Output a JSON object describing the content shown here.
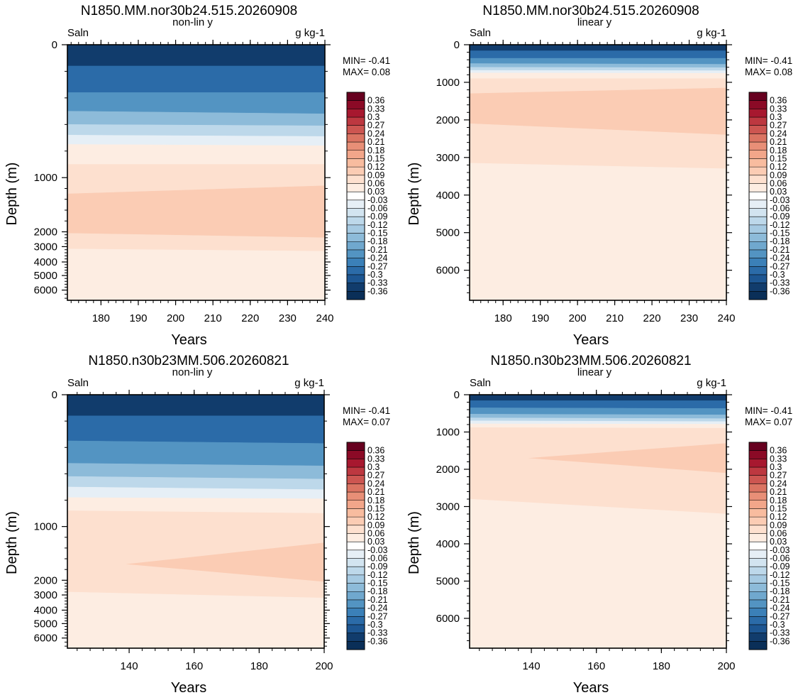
{
  "colorbar": {
    "labels": [
      "0.36",
      "0.33",
      "0.3",
      "0.27",
      "0.24",
      "0.21",
      "0.18",
      "0.15",
      "0.12",
      "0.09",
      "0.06",
      "0.03",
      "-0.03",
      "-0.06",
      "-0.09",
      "-0.12",
      "-0.15",
      "-0.18",
      "-0.21",
      "-0.24",
      "-0.27",
      "-0.3",
      "-0.33",
      "-0.36"
    ],
    "colors": [
      "#67001f",
      "#8b0a26",
      "#a7182f",
      "#bd3840",
      "#cd5651",
      "#db7462",
      "#e88f77",
      "#f2a68a",
      "#f8bc9f",
      "#fbccb4",
      "#fde0cf",
      "#fdede2",
      "#ffffff",
      "#e6eff6",
      "#d2e4f0",
      "#bdd8ea",
      "#a6cae2",
      "#8dbbd9",
      "#70a8ce",
      "#5394c2",
      "#3b80b8",
      "#2b6ba8",
      "#1d5692",
      "#113c6c",
      "#0a2f58"
    ]
  },
  "chart_data": [
    {
      "type": "heatmap",
      "title": "N1850.MM.nor30b24.515.20260908",
      "left_label": "Saln",
      "center_label": "non-lin y",
      "right_label": "g kg-1",
      "xlabel": "Years",
      "ylabel": "Depth (m)",
      "y_scale": "non-linear",
      "xlim": [
        171,
        240
      ],
      "ylim": [
        0,
        6500
      ],
      "x_ticks": [
        180,
        190,
        200,
        210,
        220,
        230,
        240
      ],
      "y_ticks": [
        0,
        1000,
        2000,
        3000,
        4000,
        5000,
        6000
      ],
      "min_text": "MIN= -0.41",
      "max_text": "MAX=  0.08",
      "layers": [
        {
          "value": -0.36,
          "top_start": 0,
          "top_end": 0,
          "bottom_start": 160,
          "bottom_end": 160
        },
        {
          "value": -0.3,
          "top_start": 160,
          "top_end": 160,
          "bottom_start": 360,
          "bottom_end": 360
        },
        {
          "value": -0.24,
          "top_start": 360,
          "top_end": 360,
          "bottom_start": 500,
          "bottom_end": 520
        },
        {
          "value": -0.18,
          "top_start": 500,
          "top_end": 520,
          "bottom_start": 600,
          "bottom_end": 610
        },
        {
          "value": -0.12,
          "top_start": 600,
          "top_end": 610,
          "bottom_start": 680,
          "bottom_end": 690
        },
        {
          "value": -0.06,
          "top_start": 680,
          "top_end": 690,
          "bottom_start": 750,
          "bottom_end": 760
        },
        {
          "value": 0.03,
          "top_start": 750,
          "top_end": 760,
          "bottom_start": 900,
          "bottom_end": 900
        },
        {
          "value": 0.06,
          "top_start": 900,
          "top_end": 900,
          "bottom_start": 1300,
          "bottom_end": 1150
        },
        {
          "value": 0.09,
          "top_start": 1300,
          "top_end": 1150,
          "bottom_start": 2100,
          "bottom_end": 2400
        },
        {
          "value": 0.06,
          "top_start": 2100,
          "top_end": 2400,
          "bottom_start": 3150,
          "bottom_end": 3300
        },
        {
          "value": 0.03,
          "top_start": 3150,
          "top_end": 3300,
          "bottom_start": 6500,
          "bottom_end": 6500
        }
      ]
    },
    {
      "type": "heatmap",
      "title": "N1850.MM.nor30b24.515.20260908",
      "left_label": "Saln",
      "center_label": "linear y",
      "right_label": "g kg-1",
      "xlabel": "Years",
      "ylabel": "Depth (m)",
      "y_scale": "linear",
      "xlim": [
        171,
        240
      ],
      "ylim": [
        0,
        6800
      ],
      "x_ticks": [
        180,
        190,
        200,
        210,
        220,
        230,
        240
      ],
      "y_ticks": [
        0,
        1000,
        2000,
        3000,
        4000,
        5000,
        6000
      ],
      "min_text": "MIN= -0.41",
      "max_text": "MAX=  0.08",
      "layers": [
        {
          "value": -0.36,
          "top_start": 0,
          "top_end": 0,
          "bottom_start": 160,
          "bottom_end": 160
        },
        {
          "value": -0.3,
          "top_start": 160,
          "top_end": 160,
          "bottom_start": 360,
          "bottom_end": 360
        },
        {
          "value": -0.24,
          "top_start": 360,
          "top_end": 360,
          "bottom_start": 500,
          "bottom_end": 520
        },
        {
          "value": -0.18,
          "top_start": 500,
          "top_end": 520,
          "bottom_start": 600,
          "bottom_end": 610
        },
        {
          "value": -0.12,
          "top_start": 600,
          "top_end": 610,
          "bottom_start": 680,
          "bottom_end": 690
        },
        {
          "value": -0.06,
          "top_start": 680,
          "top_end": 690,
          "bottom_start": 750,
          "bottom_end": 760
        },
        {
          "value": 0.03,
          "top_start": 750,
          "top_end": 760,
          "bottom_start": 900,
          "bottom_end": 900
        },
        {
          "value": 0.06,
          "top_start": 900,
          "top_end": 900,
          "bottom_start": 1300,
          "bottom_end": 1150
        },
        {
          "value": 0.09,
          "top_start": 1300,
          "top_end": 1150,
          "bottom_start": 2100,
          "bottom_end": 2400
        },
        {
          "value": 0.06,
          "top_start": 2100,
          "top_end": 2400,
          "bottom_start": 3150,
          "bottom_end": 3300
        },
        {
          "value": 0.03,
          "top_start": 3150,
          "top_end": 3300,
          "bottom_start": 6800,
          "bottom_end": 6800
        }
      ]
    },
    {
      "type": "heatmap",
      "title": "N1850.n30b23MM.506.20260821",
      "left_label": "Saln",
      "center_label": "non-lin y",
      "right_label": "g kg-1",
      "xlabel": "Years",
      "ylabel": "Depth (m)",
      "y_scale": "non-linear",
      "xlim": [
        121,
        200
      ],
      "ylim": [
        0,
        6500
      ],
      "x_ticks": [
        140,
        160,
        180,
        200
      ],
      "y_ticks": [
        0,
        1000,
        2000,
        3000,
        4000,
        5000,
        6000
      ],
      "min_text": "MIN= -0.41",
      "max_text": "MAX=  0.07",
      "layers": [
        {
          "value": -0.36,
          "top_start": 0,
          "top_end": 0,
          "bottom_start": 160,
          "bottom_end": 160
        },
        {
          "value": -0.3,
          "top_start": 160,
          "top_end": 160,
          "bottom_start": 350,
          "bottom_end": 370
        },
        {
          "value": -0.24,
          "top_start": 350,
          "top_end": 370,
          "bottom_start": 520,
          "bottom_end": 540
        },
        {
          "value": -0.18,
          "top_start": 520,
          "top_end": 540,
          "bottom_start": 620,
          "bottom_end": 640
        },
        {
          "value": -0.12,
          "top_start": 620,
          "top_end": 640,
          "bottom_start": 700,
          "bottom_end": 720
        },
        {
          "value": -0.06,
          "top_start": 700,
          "top_end": 720,
          "bottom_start": 780,
          "bottom_end": 790
        },
        {
          "value": 0.03,
          "top_start": 780,
          "top_end": 790,
          "bottom_start": 880,
          "bottom_end": 900
        },
        {
          "value": 0.06,
          "top_start": 880,
          "top_end": 900,
          "bottom_start": 2800,
          "bottom_end": 3200
        },
        {
          "value": 0.03,
          "top_start": 2800,
          "top_end": 3200,
          "bottom_start": 6500,
          "bottom_end": 6500
        }
      ],
      "patches": [
        {
          "value": 0.09,
          "x_start": 139,
          "x_end": 200,
          "top_start": 1700,
          "top_end": 1300,
          "bottom_start": 1700,
          "bottom_end": 2100
        }
      ]
    },
    {
      "type": "heatmap",
      "title": "N1850.n30b23MM.506.20260821",
      "left_label": "Saln",
      "center_label": "linear y",
      "right_label": "g kg-1",
      "xlabel": "Years",
      "ylabel": "Depth (m)",
      "y_scale": "linear",
      "xlim": [
        121,
        200
      ],
      "ylim": [
        0,
        6800
      ],
      "x_ticks": [
        140,
        160,
        180,
        200
      ],
      "y_ticks": [
        0,
        1000,
        2000,
        3000,
        4000,
        5000,
        6000
      ],
      "min_text": "MIN= -0.41",
      "max_text": "MAX=  0.07",
      "layers": [
        {
          "value": -0.36,
          "top_start": 0,
          "top_end": 0,
          "bottom_start": 160,
          "bottom_end": 160
        },
        {
          "value": -0.3,
          "top_start": 160,
          "top_end": 160,
          "bottom_start": 350,
          "bottom_end": 370
        },
        {
          "value": -0.24,
          "top_start": 350,
          "top_end": 370,
          "bottom_start": 520,
          "bottom_end": 540
        },
        {
          "value": -0.18,
          "top_start": 520,
          "top_end": 540,
          "bottom_start": 620,
          "bottom_end": 640
        },
        {
          "value": -0.12,
          "top_start": 620,
          "top_end": 640,
          "bottom_start": 700,
          "bottom_end": 720
        },
        {
          "value": -0.06,
          "top_start": 700,
          "top_end": 720,
          "bottom_start": 780,
          "bottom_end": 790
        },
        {
          "value": 0.03,
          "top_start": 780,
          "top_end": 790,
          "bottom_start": 880,
          "bottom_end": 900
        },
        {
          "value": 0.06,
          "top_start": 880,
          "top_end": 900,
          "bottom_start": 2800,
          "bottom_end": 3200
        },
        {
          "value": 0.03,
          "top_start": 2800,
          "top_end": 3200,
          "bottom_start": 6800,
          "bottom_end": 6800
        }
      ],
      "patches": [
        {
          "value": 0.09,
          "x_start": 139,
          "x_end": 200,
          "top_start": 1700,
          "top_end": 1300,
          "bottom_start": 1700,
          "bottom_end": 2100
        }
      ]
    }
  ]
}
